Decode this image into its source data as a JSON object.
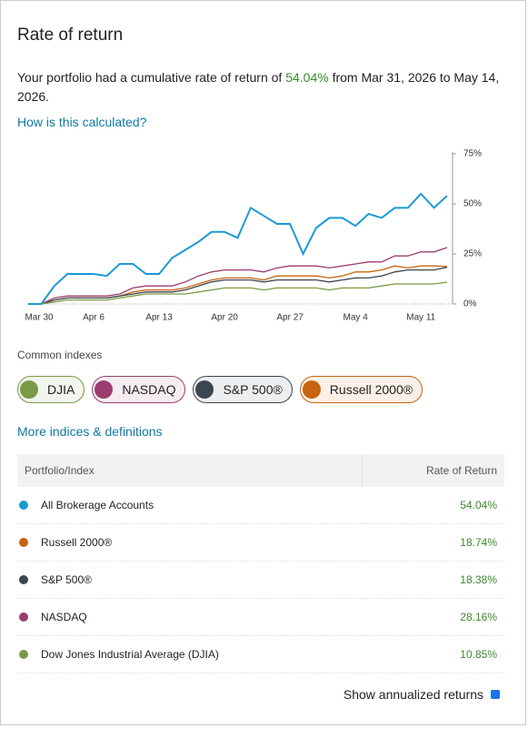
{
  "header": {
    "title": "Rate of return"
  },
  "summary": {
    "before": "Your portfolio had a cumulative rate of return of ",
    "rate": "54.04%",
    "after": " from Mar 31, 2026 to May 14, 2026."
  },
  "links": {
    "how": "How is this calculated?",
    "more": "More indices & definitions"
  },
  "indexes_label": "Common indexes",
  "chart_data": {
    "type": "line",
    "categories": [
      "Mar 30",
      null,
      null,
      null,
      null,
      "Apr 6",
      null,
      null,
      null,
      null,
      "Apr 13",
      null,
      null,
      null,
      null,
      "Apr 20",
      null,
      null,
      null,
      null,
      "Apr 27",
      null,
      null,
      null,
      null,
      "May 4",
      null,
      null,
      null,
      null,
      "May 11",
      null,
      null
    ],
    "ylim": [
      0,
      75
    ],
    "yticks": [
      {
        "value": 0,
        "label": "0%"
      },
      {
        "value": 25,
        "label": "25%"
      },
      {
        "value": 50,
        "label": "50%"
      },
      {
        "value": 75,
        "label": "75%"
      }
    ],
    "series": [
      {
        "color": "#1a9ad6",
        "values": [
          0,
          0,
          9,
          15,
          15,
          15,
          14,
          20,
          20,
          15,
          15,
          23,
          27,
          31,
          36,
          36,
          33,
          48,
          44,
          40,
          40,
          25,
          38,
          43,
          43,
          39,
          45,
          43,
          48,
          48,
          55,
          48,
          54.04
        ]
      },
      {
        "name": "DJIA",
        "color": "#7a9a45",
        "values": [
          0,
          0,
          1,
          2,
          2,
          2,
          2,
          3,
          4,
          5,
          5,
          5,
          5,
          6,
          7,
          8,
          8,
          8,
          7,
          8,
          8,
          8,
          8,
          7,
          8,
          8,
          8,
          9,
          10,
          10,
          10,
          10,
          10.85
        ]
      },
      {
        "name": "NASDAQ",
        "color": "#9b3d6e",
        "values": [
          0,
          0,
          3,
          4,
          4,
          4,
          4,
          5,
          8,
          9,
          9,
          9,
          11,
          14,
          16,
          17,
          17,
          17,
          16,
          18,
          19,
          19,
          19,
          18,
          19,
          20,
          21,
          21,
          24,
          24,
          26,
          26,
          28.16
        ]
      },
      {
        "name": "S&P 500®",
        "color": "#3c4650",
        "values": [
          0,
          0,
          2,
          3,
          3,
          3,
          3,
          4,
          5,
          6,
          6,
          6,
          7,
          9,
          11,
          12,
          12,
          12,
          11,
          12,
          12,
          12,
          12,
          11,
          12,
          13,
          13,
          14,
          16,
          17,
          17,
          17,
          18.38
        ]
      },
      {
        "name": "Russell 2000®",
        "color": "#c8640f",
        "values": [
          0,
          0,
          2,
          3,
          3,
          3,
          3,
          4,
          6,
          7,
          7,
          7,
          8,
          10,
          12,
          13,
          13,
          13,
          12,
          14,
          14,
          14,
          14,
          13,
          14,
          16,
          16,
          17,
          19,
          18,
          19,
          19,
          18.74
        ]
      }
    ]
  },
  "table": {
    "header": [
      "Portfolio/Index",
      "Rate of Return"
    ],
    "rows": [
      [
        "All Brokerage Accounts",
        "54.04%"
      ],
      [
        "Russell 2000®",
        "18.74%"
      ],
      [
        "S&P 500®",
        "18.38%"
      ],
      [
        "NASDAQ",
        "28.16%"
      ],
      [
        "Dow Jones Industrial Average (DJIA)",
        "10.85%"
      ]
    ],
    "row_colors": [
      "#1a9ad6",
      "#c8640f",
      "#3c4650",
      "#9b3d6e",
      "#7a9a45"
    ]
  },
  "footer": {
    "annualized": "Show annualized returns"
  }
}
